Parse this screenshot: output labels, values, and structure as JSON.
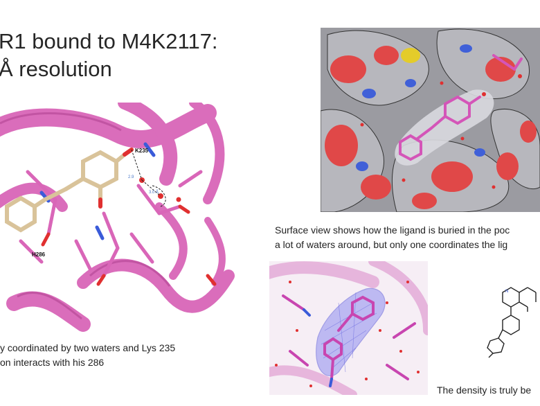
{
  "slide": {
    "title_line1": "R1 bound to M4K2117:",
    "title_line2": "Å resolution"
  },
  "structure_panel": {
    "label_lys": "K235",
    "label_his": "H286",
    "distance_1": "2.9",
    "distance_2": "3.0 Å"
  },
  "captions": {
    "left_line1": "y coordinated by two waters and Lys 235",
    "left_line2": "on interacts with his 286",
    "surface_line1": "Surface view shows how the ligand is buried in the poc",
    "surface_line2": "a lot of waters around, but only one coordinates the lig",
    "density": "The density is truly be"
  },
  "colors": {
    "ribbon": "#d966b8",
    "ligand": "#d9c39a",
    "oxygen": "#e03030",
    "nitrogen": "#3a5bd9",
    "surface_grey": "#a7a7ad",
    "density_mesh": "#7070e6"
  }
}
